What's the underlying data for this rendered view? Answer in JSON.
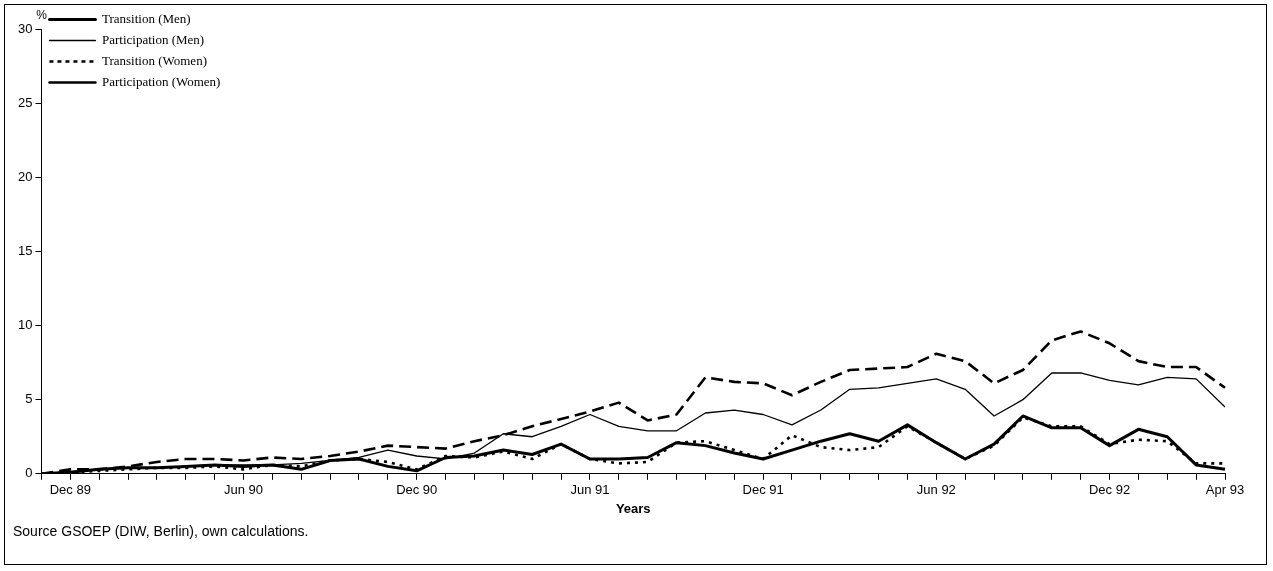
{
  "chart_data": {
    "type": "line",
    "ylabel": "%",
    "xlabel": "Years",
    "categories": [
      null,
      "Dec 89",
      null,
      null,
      null,
      null,
      null,
      "Jun 90",
      null,
      null,
      null,
      null,
      null,
      "Dec 90",
      null,
      null,
      null,
      null,
      null,
      "Jun 91",
      null,
      null,
      null,
      null,
      null,
      "Dec 91",
      null,
      null,
      null,
      null,
      null,
      "Jun 92",
      null,
      null,
      null,
      null,
      null,
      "Dec 92",
      null,
      null,
      null,
      "Apr 93"
    ],
    "series": [
      {
        "name": "Transition (Men)",
        "color": "#000000",
        "line_style": "solid",
        "values": [
          0,
          0.1,
          0.3,
          0.4,
          0.4,
          0.5,
          0.6,
          0.5,
          0.6,
          0.3,
          0.9,
          1.0,
          0.5,
          0.2,
          1.1,
          1.2,
          1.6,
          1.3,
          2.0,
          1.0,
          1.0,
          1.1,
          2.1,
          1.9,
          1.4,
          1.0,
          1.6,
          2.2,
          2.7,
          2.2,
          3.3,
          2.1,
          1.0,
          2.0,
          3.9,
          3.1,
          3.1,
          1.9,
          3.0,
          2.5,
          0.6,
          0.3
        ]
      },
      {
        "name": "Participation (Men)",
        "color": "#000000",
        "line_style": "solid",
        "values": [
          0,
          0.1,
          0.3,
          0.4,
          0.4,
          0.5,
          0.6,
          0.6,
          0.6,
          0.7,
          0.9,
          1.1,
          1.6,
          1.2,
          1.0,
          1.4,
          2.7,
          2.5,
          3.2,
          4.0,
          3.2,
          2.9,
          2.9,
          4.1,
          4.3,
          4.0,
          3.3,
          4.3,
          5.7,
          5.8,
          6.1,
          6.4,
          5.7,
          3.9,
          5.0,
          6.8,
          6.8,
          6.3,
          6.0,
          6.5,
          6.4,
          4.5
        ]
      },
      {
        "name": "Transition (Women)",
        "color": "#000000",
        "line_style": "dotted",
        "values": [
          0,
          0.1,
          0.2,
          0.3,
          0.4,
          0.4,
          0.5,
          0.3,
          0.6,
          0.5,
          0.9,
          1.0,
          0.8,
          0.3,
          1.2,
          1.1,
          1.5,
          1.0,
          2.0,
          1.0,
          0.7,
          0.8,
          2.1,
          2.2,
          1.6,
          1.0,
          2.6,
          1.8,
          1.6,
          1.8,
          3.2,
          2.1,
          1.0,
          1.9,
          3.8,
          3.2,
          3.2,
          2.0,
          2.3,
          2.2,
          0.7,
          0.7
        ]
      },
      {
        "name": "Participation (Women)",
        "color": "#000000",
        "line_style": "dashed",
        "values": [
          0,
          0.3,
          0.3,
          0.5,
          0.8,
          1.0,
          1.0,
          0.9,
          1.1,
          1.0,
          1.2,
          1.5,
          1.9,
          1.8,
          1.7,
          2.2,
          2.6,
          3.2,
          3.7,
          4.2,
          4.8,
          3.6,
          4.0,
          6.5,
          6.2,
          6.1,
          5.3,
          6.2,
          7.0,
          7.1,
          7.2,
          8.1,
          7.6,
          6.1,
          7.0,
          9.0,
          9.6,
          8.8,
          7.6,
          7.2,
          7.2,
          5.8
        ]
      }
    ],
    "ylim": [
      0,
      30
    ],
    "yticks": [
      0,
      5,
      10,
      15,
      20,
      25,
      30
    ],
    "grid": false,
    "legend": "top left",
    "marker": "none",
    "annotations": [
      "Source GSOEP (DIW, Berlin), own calculations."
    ]
  }
}
